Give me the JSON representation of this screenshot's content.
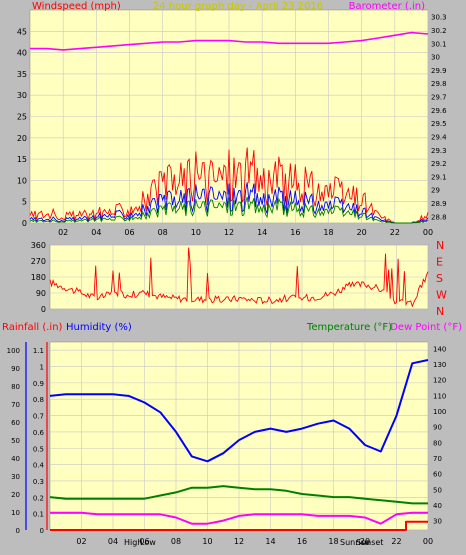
{
  "chart_data": [
    {
      "type": "line",
      "title": "24 hour graph day - April 23 2016",
      "left_axis_label": "Windspeed (mph)",
      "right_axis_label": "Barometer (.in)",
      "x_ticks": [
        "02",
        "04",
        "06",
        "08",
        "10",
        "12",
        "14",
        "16",
        "18",
        "20",
        "22",
        "00"
      ],
      "left_ticks": [
        0,
        5,
        10,
        15,
        20,
        25,
        30,
        35,
        40,
        45
      ],
      "right_ticks": [
        "28.8",
        "28.9",
        "29",
        "29.1",
        "29.2",
        "29.3",
        "29.4",
        "29.5",
        "29.6",
        "29.7",
        "29.8",
        "29.9",
        "30",
        "30.1",
        "30.2",
        "30.3"
      ],
      "left_range": [
        0,
        50
      ],
      "right_range": [
        28.75,
        30.35
      ],
      "grid": true,
      "hours": [
        0,
        1,
        2,
        3,
        4,
        5,
        6,
        7,
        8,
        9,
        10,
        11,
        12,
        13,
        14,
        15,
        16,
        17,
        18,
        19,
        20,
        21,
        22,
        23,
        24
      ],
      "series": [
        {
          "name": "Wind gust",
          "color": "#ff0000",
          "values": [
            2,
            2.5,
            2,
            2,
            2.5,
            3,
            4,
            6,
            9,
            11,
            12,
            12,
            13,
            13,
            12,
            11,
            10,
            9,
            8,
            7,
            6,
            2,
            0,
            0,
            2
          ]
        },
        {
          "name": "Wind speed",
          "color": "#0000ff",
          "values": [
            1,
            1,
            1,
            1,
            1.5,
            2,
            2.5,
            3.5,
            5,
            6,
            6.5,
            7,
            7,
            7,
            6.5,
            6,
            5.5,
            5,
            4.5,
            4,
            3,
            1,
            0,
            0,
            1
          ]
        },
        {
          "name": "Wind average",
          "color": "#008000",
          "values": [
            0.5,
            0.5,
            0.5,
            0.5,
            1,
            1,
            1.5,
            2,
            3,
            4,
            4,
            4.5,
            4.5,
            4.5,
            4,
            4,
            3.5,
            3,
            3,
            2.5,
            2,
            0.5,
            0,
            0,
            0.5
          ]
        },
        {
          "name": "Barometer",
          "color": "#ff00ff",
          "axis": "right",
          "values": [
            30.06,
            30.06,
            30.05,
            30.06,
            30.07,
            30.08,
            30.09,
            30.1,
            30.11,
            30.11,
            30.12,
            30.12,
            30.12,
            30.11,
            30.11,
            30.1,
            30.1,
            30.1,
            30.1,
            30.11,
            30.12,
            30.14,
            30.16,
            30.18,
            30.17
          ]
        }
      ]
    },
    {
      "type": "line",
      "title": "",
      "left_ticks": [
        0,
        90,
        180,
        270,
        360
      ],
      "right_ticks": [
        "N",
        "W",
        "S",
        "E",
        "N"
      ],
      "left_range": [
        0,
        360
      ],
      "grid": true,
      "hours": [
        0,
        1,
        2,
        3,
        4,
        5,
        6,
        7,
        8,
        9,
        10,
        11,
        12,
        13,
        14,
        15,
        16,
        17,
        18,
        19,
        20,
        21,
        22,
        23,
        24
      ],
      "series": [
        {
          "name": "Wind direction",
          "color": "#ff0000",
          "values": [
            150,
            120,
            90,
            60,
            90,
            80,
            90,
            70,
            60,
            55,
            55,
            50,
            60,
            50,
            50,
            60,
            60,
            70,
            90,
            130,
            140,
            110,
            40,
            30,
            200
          ]
        }
      ]
    },
    {
      "type": "line",
      "title": "",
      "labels": {
        "rainfall": "Rainfall (.in)",
        "humidity": "Humidity (%)",
        "temperature": "Temperature (°F)",
        "dewpoint": "Dew Point (°F)"
      },
      "x_ticks": [
        "02",
        "04",
        "06",
        "08",
        "10",
        "12",
        "14",
        "16",
        "18",
        "20",
        "22",
        "00"
      ],
      "annotations": [
        "High",
        "Low",
        "Sunrise",
        "Sunset"
      ],
      "humidity_ticks": [
        0,
        10,
        20,
        30,
        40,
        50,
        60,
        70,
        80,
        90,
        100
      ],
      "rain_ticks": [
        "0",
        "0.1",
        "0.2",
        "0.3",
        "0.4",
        "0.5",
        "0.6",
        "0.7",
        "0.8",
        "0.9",
        "1",
        "1.1"
      ],
      "temp_ticks": [
        30,
        40,
        50,
        60,
        70,
        80,
        90,
        100,
        110,
        120,
        130,
        140
      ],
      "rain_range": [
        0,
        1.15
      ],
      "temp_range": [
        24,
        144
      ],
      "grid": true,
      "hours": [
        0,
        1,
        2,
        3,
        4,
        5,
        6,
        7,
        8,
        9,
        10,
        11,
        12,
        13,
        14,
        15,
        16,
        17,
        18,
        19,
        20,
        21,
        22,
        23,
        24
      ],
      "series": [
        {
          "name": "Humidity",
          "color": "#0000ff",
          "axis": "rain",
          "values": [
            0.82,
            0.83,
            0.83,
            0.83,
            0.83,
            0.82,
            0.78,
            0.72,
            0.6,
            0.45,
            0.42,
            0.47,
            0.55,
            0.6,
            0.62,
            0.6,
            0.62,
            0.65,
            0.67,
            0.62,
            0.52,
            0.48,
            0.7,
            1.02,
            1.04
          ]
        },
        {
          "name": "Temperature",
          "color": "#008000",
          "axis": "temp",
          "values": [
            45,
            44,
            44,
            44,
            44,
            44,
            44,
            46,
            48,
            51,
            51,
            52,
            51,
            50,
            50,
            49,
            47,
            46,
            45,
            45,
            44,
            43,
            42,
            41,
            41
          ]
        },
        {
          "name": "Dew Point",
          "color": "#ff00ff",
          "axis": "temp",
          "values": [
            35,
            35,
            35,
            34,
            34,
            34,
            34,
            34,
            32,
            28,
            28,
            30,
            33,
            34,
            34,
            34,
            34,
            33,
            33,
            33,
            32,
            28,
            34,
            35,
            35
          ]
        },
        {
          "name": "Rainfall",
          "color": "#ff0000",
          "axis": "rain",
          "values": [
            0,
            0,
            0,
            0,
            0,
            0,
            0,
            0,
            0,
            0,
            0,
            0,
            0,
            0,
            0,
            0,
            0,
            0,
            0,
            0,
            0,
            0,
            0,
            0.05,
            0.05
          ]
        }
      ]
    }
  ]
}
